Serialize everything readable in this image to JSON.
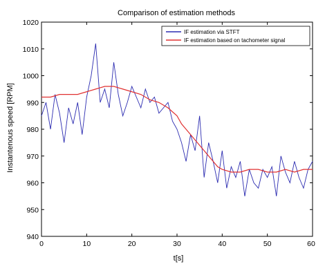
{
  "chart_data": {
    "type": "line",
    "title": "Comparison of estimation methods",
    "xlabel": "t[s]",
    "ylabel": "Instantenous speed [RPM]",
    "xlim": [
      0,
      60
    ],
    "ylim": [
      940,
      1020
    ],
    "xticks": [
      0,
      10,
      20,
      30,
      40,
      50,
      60
    ],
    "yticks": [
      940,
      950,
      960,
      970,
      980,
      990,
      1000,
      1010,
      1020
    ],
    "grid": false,
    "legend_position": "top-right",
    "series": [
      {
        "name": "IF estimation via STFT",
        "color": "#2b2bb0",
        "x": [
          0,
          1,
          2,
          3,
          4,
          5,
          6,
          7,
          8,
          9,
          10,
          11,
          12,
          13,
          14,
          15,
          16,
          17,
          18,
          19,
          20,
          21,
          22,
          23,
          24,
          25,
          26,
          27,
          28,
          29,
          30,
          31,
          32,
          33,
          34,
          35,
          36,
          37,
          38,
          39,
          40,
          41,
          42,
          43,
          44,
          45,
          46,
          47,
          48,
          49,
          50,
          51,
          52,
          53,
          54,
          55,
          56,
          57,
          58,
          59,
          60
        ],
        "y": [
          985,
          990,
          980,
          993,
          986,
          975,
          988,
          982,
          990,
          978,
          992,
          1000,
          1012,
          990,
          995,
          988,
          1005,
          993,
          985,
          990,
          996,
          992,
          988,
          995,
          990,
          992,
          986,
          988,
          990,
          983,
          980,
          975,
          968,
          978,
          972,
          985,
          962,
          975,
          968,
          960,
          972,
          958,
          966,
          962,
          968,
          955,
          965,
          960,
          958,
          965,
          962,
          966,
          955,
          970,
          964,
          960,
          968,
          962,
          958,
          965,
          968
        ]
      },
      {
        "name": "IF estimation based on tachometer signal",
        "color": "#e03030",
        "x": [
          0,
          2,
          4,
          6,
          8,
          10,
          12,
          14,
          16,
          18,
          20,
          22,
          24,
          26,
          28,
          30,
          31,
          32,
          33,
          34,
          35,
          36,
          37,
          38,
          39,
          40,
          42,
          44,
          46,
          48,
          50,
          52,
          54,
          56,
          58,
          60
        ],
        "y": [
          992,
          992,
          993,
          993,
          993,
          994,
          995,
          996,
          996,
          995,
          994,
          993,
          991,
          990,
          988,
          985,
          982,
          980,
          978,
          976,
          974,
          972,
          970,
          968,
          966,
          965,
          964,
          964,
          965,
          965,
          964,
          964,
          965,
          964,
          965,
          965
        ]
      }
    ]
  }
}
